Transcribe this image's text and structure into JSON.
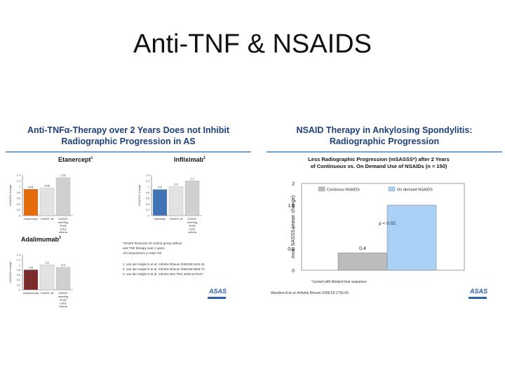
{
  "slide": {
    "title": "Anti-TNF & NSAIDS"
  },
  "left_panel": {
    "heading_line1": "Anti-TNFα-Therapy over 2 Years Does not Inhibit",
    "heading_line2": "Radiographic Progression in AS",
    "etanercept": {
      "title": "Etanercept",
      "sup": "1"
    },
    "infliximab": {
      "title": "Infliximab",
      "sup": "2"
    },
    "adalimumab": {
      "title": "Adalimumab",
      "sup": "3"
    },
    "footnote_line1": "*OASIS historical AS control group without",
    "footnote_line2": "anti-TNF therapy over 2 years",
    "footnote_line3": "All comparisons p-value NS",
    "ref1": "1. van der Heijde D et al. Arthritis Rheum 2008;58:1324-31",
    "ref2": "2. van der Heijde D et al. Arthritis Rheum 2008;58:3063-70",
    "ref3": "3. van der Heijde D et al. Arthritis Res Ther 2009;11:R127",
    "logo": "ASAS"
  },
  "right_panel": {
    "heading_line1": "NSAID Therapy in Ankylosing Spondylitis:",
    "heading_line2": "Radiographic Progression",
    "chart_title_line1": "Less Radiographic Progression (mSASSS*) after 2 Years",
    "chart_title_line2": "of Continuous vs. On Demand Use of NSAIDs (n = 150)",
    "footnote": "*scored with blinded time sequence",
    "citation": "Wanders A et al. Arthritis Rheum 2005;52:1756-65",
    "logo": "ASAS"
  },
  "chart_data": [
    {
      "type": "bar",
      "title": "Etanercept",
      "ylabel": "mSASSS change",
      "categories": [
        "Etanercept",
        "OASIS* all",
        "OASIS* meeting study entry criteria"
      ],
      "values": [
        0.91,
        0.95,
        1.31
      ],
      "value_labels": [
        "0.91",
        "0.95",
        "1.31"
      ],
      "ylim": [
        0,
        1.4
      ],
      "yticks": [
        "0",
        "0.2",
        "0.4",
        "0.6",
        "0.8",
        "1",
        "1.2",
        "1.4"
      ],
      "colors": [
        "#e46c0a",
        "#e2e2e2",
        "#d0d0d0"
      ]
    },
    {
      "type": "bar",
      "title": "Infliximab",
      "ylabel": "mSASSS change",
      "categories": [
        "Infliximab",
        "OASIS* all",
        "OASIS* meeting study entry criteria"
      ],
      "values": [
        0.9,
        1.0,
        1.2
      ],
      "value_labels": [
        "0.9",
        "1.0",
        "1.2"
      ],
      "ylim": [
        0,
        1.4
      ],
      "yticks": [
        "0",
        "0.2",
        "0.4",
        "0.6",
        "0.8",
        "1",
        "1.2",
        "1.4"
      ],
      "colors": [
        "#3f73b3",
        "#e2e2e2",
        "#d0d0d0"
      ]
    },
    {
      "type": "bar",
      "title": "Adalimumab",
      "ylabel": "mSASSS change",
      "categories": [
        "Adalimumab",
        "OASIS* all",
        "OASIS* meeting study entry criteria"
      ],
      "values": [
        0.8,
        1.0,
        0.9
      ],
      "value_labels": [
        "0.8",
        "1.0",
        "0.9"
      ],
      "ylim": [
        0,
        1.4
      ],
      "yticks": [
        "0",
        "0.2",
        "0.4",
        "0.6",
        "0.8",
        "1",
        "1.2",
        "1.4"
      ],
      "colors": [
        "#7b2b2b",
        "#e2e2e2",
        "#d0d0d0"
      ]
    },
    {
      "type": "bar",
      "title": "",
      "ylabel": "mod. SASSS (mean change)",
      "series": [
        {
          "name": "Continous NSAIDS",
          "values": [
            0.4
          ],
          "color": "#bcbcbc"
        },
        {
          "name": "On demand NSAIDS",
          "values": [
            1.5
          ],
          "color": "#a9d0f5"
        }
      ],
      "value_labels": [
        "0.4",
        ""
      ],
      "annotation": "p < 0.02",
      "ylim": [
        0,
        2
      ],
      "yticks": [
        "0",
        "0.5",
        "1",
        "1.5",
        "2"
      ],
      "legend": "top"
    }
  ]
}
